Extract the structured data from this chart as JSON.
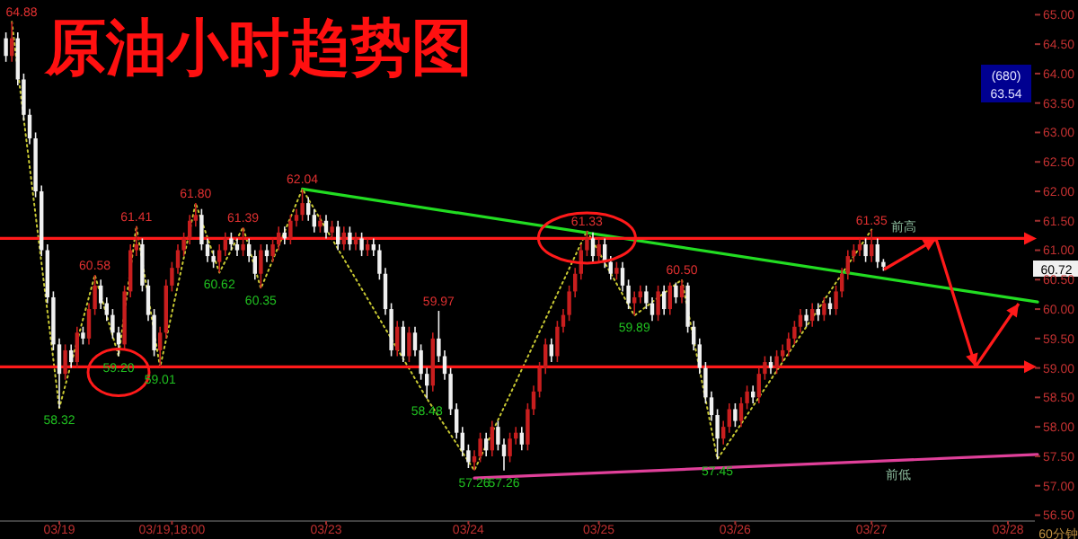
{
  "chart_data": {
    "type": "candlestick",
    "title": "原油小时趋势图",
    "categories": [
      null,
      null,
      null,
      null,
      null,
      null,
      null,
      null,
      null,
      null,
      "03/19",
      null,
      null,
      null,
      null,
      null,
      null,
      null,
      null,
      null,
      null,
      null,
      null,
      null,
      null,
      null,
      null,
      null,
      null,
      "03/19,18:00",
      null,
      null,
      null,
      null,
      null,
      null,
      null,
      null,
      null,
      null,
      null,
      null,
      null,
      null,
      null,
      null,
      null,
      null,
      null,
      null,
      null,
      null,
      null,
      null,
      null,
      "03/23",
      null,
      null,
      null,
      null,
      null,
      null,
      null,
      null,
      null,
      null,
      null,
      null,
      null,
      null,
      null,
      null,
      null,
      null,
      null,
      null,
      null,
      null,
      null,
      "03/24",
      null,
      null,
      null,
      null,
      null,
      null,
      null,
      null,
      null,
      null,
      null,
      null,
      null,
      null,
      null,
      null,
      null,
      null,
      null,
      null,
      null,
      "03/25",
      null,
      null,
      null,
      null,
      null,
      null,
      null,
      null,
      null,
      null,
      null,
      null,
      null,
      null,
      null,
      null,
      null,
      null,
      null,
      null,
      null,
      null,
      "03/26",
      null,
      null,
      null,
      null,
      null,
      null,
      null,
      null,
      null,
      null,
      null,
      null,
      null,
      null,
      null,
      null,
      null,
      null,
      null,
      null,
      null,
      null,
      "03/27",
      null,
      null,
      null,
      null,
      null,
      null,
      null,
      null,
      null,
      null,
      null,
      null,
      null,
      null,
      null,
      null,
      null,
      null,
      null,
      null,
      null,
      null,
      "03/28",
      null,
      null,
      null,
      null,
      null
    ],
    "ylim": [
      56.4,
      65.25
    ],
    "yticks": [
      {
        "value": 56.5,
        "label": "56.50"
      },
      {
        "value": 57,
        "label": "57.00"
      },
      {
        "value": 57.5,
        "label": "57.50"
      },
      {
        "value": 58,
        "label": "58.00"
      },
      {
        "value": 58.5,
        "label": "58.50"
      },
      {
        "value": 59,
        "label": "59.00"
      },
      {
        "value": 59.5,
        "label": "59.50"
      },
      {
        "value": 60,
        "label": "60.00"
      },
      {
        "value": 60.5,
        "label": "60.50"
      },
      {
        "value": 61,
        "label": "61.00"
      },
      {
        "value": 61.5,
        "label": "61.50"
      },
      {
        "value": 62,
        "label": "62.00"
      },
      {
        "value": 62.5,
        "label": "62.50"
      },
      {
        "value": 63,
        "label": "63.00"
      },
      {
        "value": 63.5,
        "label": "63.50"
      },
      {
        "value": 64,
        "label": "64.00"
      },
      {
        "value": 64.5,
        "label": "64.50"
      },
      {
        "value": 65,
        "label": "65.00"
      }
    ],
    "ohlc": [
      null,
      [
        64.6,
        64.7,
        64.2,
        64.3
      ],
      [
        64.3,
        64.88,
        64.2,
        64.6
      ],
      [
        64.6,
        64.7,
        63.8,
        63.9
      ],
      [
        63.9,
        64.0,
        63.2,
        63.3
      ],
      [
        63.3,
        63.4,
        62.8,
        62.9
      ],
      [
        62.9,
        63.0,
        61.9,
        62.0
      ],
      [
        62.0,
        62.1,
        60.9,
        61.0
      ],
      [
        61.0,
        61.1,
        60.1,
        60.2
      ],
      [
        60.2,
        60.3,
        59.3,
        59.4
      ],
      [
        59.4,
        59.5,
        58.32,
        58.9
      ],
      [
        58.9,
        59.4,
        58.8,
        59.3
      ],
      [
        59.3,
        59.4,
        59.0,
        59.1
      ],
      [
        59.1,
        59.7,
        59.0,
        59.6
      ],
      [
        59.6,
        59.7,
        59.4,
        59.5
      ],
      [
        59.5,
        60.1,
        59.4,
        60.0
      ],
      [
        60.0,
        60.58,
        59.9,
        60.4
      ],
      [
        60.4,
        60.5,
        60.0,
        60.1
      ],
      [
        60.1,
        60.2,
        59.8,
        59.9
      ],
      [
        59.9,
        60.0,
        59.5,
        59.6
      ],
      [
        59.6,
        59.7,
        59.2,
        59.4
      ],
      [
        59.4,
        60.4,
        59.3,
        60.3
      ],
      [
        60.3,
        61.1,
        60.2,
        61.0
      ],
      [
        61.0,
        61.41,
        60.9,
        61.1
      ],
      [
        61.1,
        61.2,
        60.3,
        60.4
      ],
      [
        60.4,
        60.5,
        59.8,
        59.9
      ],
      [
        59.9,
        60.0,
        59.2,
        59.3
      ],
      [
        59.3,
        59.7,
        59.01,
        59.6
      ],
      [
        59.6,
        60.5,
        59.5,
        60.4
      ],
      [
        60.4,
        60.8,
        60.3,
        60.7
      ],
      [
        60.7,
        61.1,
        60.6,
        61.0
      ],
      [
        61.0,
        61.3,
        60.9,
        61.2
      ],
      [
        61.2,
        61.6,
        61.1,
        61.5
      ],
      [
        61.5,
        61.8,
        61.4,
        61.6
      ],
      [
        61.6,
        61.7,
        61.0,
        61.1
      ],
      [
        61.1,
        61.2,
        60.8,
        60.9
      ],
      [
        60.9,
        61.0,
        60.7,
        60.8
      ],
      [
        60.8,
        61.1,
        60.62,
        61.0
      ],
      [
        61.0,
        61.3,
        60.9,
        61.2
      ],
      [
        61.2,
        61.3,
        61.0,
        61.1
      ],
      [
        61.1,
        61.2,
        60.9,
        61.0
      ],
      [
        61.0,
        61.39,
        60.9,
        61.1
      ],
      [
        61.1,
        61.2,
        60.8,
        60.9
      ],
      [
        60.9,
        61.0,
        60.5,
        60.6
      ],
      [
        60.6,
        61.1,
        60.35,
        61.0
      ],
      [
        61.0,
        61.1,
        60.8,
        60.9
      ],
      [
        60.9,
        61.2,
        60.8,
        61.1
      ],
      [
        61.1,
        61.4,
        61.0,
        61.3
      ],
      [
        61.3,
        61.4,
        61.1,
        61.2
      ],
      [
        61.2,
        61.6,
        61.1,
        61.5
      ],
      [
        61.5,
        61.7,
        61.4,
        61.6
      ],
      [
        61.6,
        62.04,
        61.5,
        61.8
      ],
      [
        61.8,
        61.9,
        61.5,
        61.6
      ],
      [
        61.6,
        61.7,
        61.3,
        61.4
      ],
      [
        61.4,
        61.6,
        61.3,
        61.5
      ],
      [
        61.5,
        61.6,
        61.2,
        61.3
      ],
      [
        61.3,
        61.5,
        61.2,
        61.4
      ],
      [
        61.4,
        61.5,
        61.0,
        61.1
      ],
      [
        61.1,
        61.4,
        61.0,
        61.3
      ],
      [
        61.3,
        61.4,
        61.0,
        61.1
      ],
      [
        61.1,
        61.3,
        61.0,
        61.2
      ],
      [
        61.2,
        61.3,
        60.9,
        61.0
      ],
      [
        61.0,
        61.2,
        60.9,
        61.1
      ],
      [
        61.1,
        61.2,
        60.9,
        61.0
      ],
      [
        61.0,
        61.1,
        60.5,
        60.6
      ],
      [
        60.6,
        60.7,
        59.9,
        60.0
      ],
      [
        60.0,
        60.1,
        59.2,
        59.3
      ],
      [
        59.3,
        59.8,
        59.2,
        59.7
      ],
      [
        59.7,
        59.8,
        59.1,
        59.2
      ],
      [
        59.2,
        59.7,
        59.1,
        59.6
      ],
      [
        59.6,
        59.7,
        59.2,
        59.3
      ],
      [
        59.3,
        59.4,
        58.8,
        58.9
      ],
      [
        58.9,
        59.0,
        58.48,
        58.7
      ],
      [
        58.7,
        59.6,
        58.6,
        59.5
      ],
      [
        59.5,
        59.97,
        59.1,
        59.2
      ],
      [
        59.2,
        59.3,
        58.8,
        58.9
      ],
      [
        58.9,
        59.0,
        58.2,
        58.3
      ],
      [
        58.3,
        58.4,
        57.8,
        57.9
      ],
      [
        57.9,
        58.0,
        57.5,
        57.6
      ],
      [
        57.6,
        57.7,
        57.3,
        57.4
      ],
      [
        57.4,
        57.6,
        57.26,
        57.5
      ],
      [
        57.5,
        57.9,
        57.4,
        57.8
      ],
      [
        57.8,
        57.9,
        57.5,
        57.6
      ],
      [
        57.6,
        58.1,
        57.5,
        58.0
      ],
      [
        58.0,
        58.1,
        57.6,
        57.7
      ],
      [
        57.7,
        57.8,
        57.26,
        57.5
      ],
      [
        57.5,
        57.9,
        57.4,
        57.8
      ],
      [
        57.8,
        58.0,
        57.7,
        57.9
      ],
      [
        57.9,
        58.0,
        57.6,
        57.7
      ],
      [
        57.7,
        58.4,
        57.6,
        58.3
      ],
      [
        58.3,
        58.7,
        58.2,
        58.6
      ],
      [
        58.6,
        59.1,
        58.5,
        59.0
      ],
      [
        59.0,
        59.5,
        58.9,
        59.4
      ],
      [
        59.4,
        59.5,
        59.1,
        59.2
      ],
      [
        59.2,
        59.8,
        59.1,
        59.7
      ],
      [
        59.7,
        60.0,
        59.6,
        59.9
      ],
      [
        59.9,
        60.4,
        59.8,
        60.3
      ],
      [
        60.3,
        60.7,
        60.2,
        60.6
      ],
      [
        60.6,
        61.1,
        60.5,
        61.0
      ],
      [
        61.0,
        61.33,
        60.9,
        61.2
      ],
      [
        61.2,
        61.3,
        60.8,
        60.9
      ],
      [
        60.9,
        61.2,
        60.8,
        61.1
      ],
      [
        61.1,
        61.2,
        60.7,
        60.8
      ],
      [
        60.8,
        60.9,
        60.5,
        60.6
      ],
      [
        60.6,
        60.8,
        60.5,
        60.7
      ],
      [
        60.7,
        60.8,
        60.3,
        60.4
      ],
      [
        60.4,
        60.5,
        60.0,
        60.1
      ],
      [
        60.1,
        60.3,
        59.89,
        60.2
      ],
      [
        60.2,
        60.4,
        60.1,
        60.3
      ],
      [
        60.3,
        60.4,
        60.0,
        60.1
      ],
      [
        60.1,
        60.2,
        59.8,
        59.9
      ],
      [
        59.9,
        60.4,
        59.8,
        60.3
      ],
      [
        60.3,
        60.4,
        59.9,
        60.0
      ],
      [
        60.0,
        60.45,
        59.9,
        60.4
      ],
      [
        60.4,
        60.45,
        60.1,
        60.2
      ],
      [
        60.2,
        60.5,
        60.1,
        60.4
      ],
      [
        60.4,
        60.45,
        59.6,
        59.7
      ],
      [
        59.7,
        59.8,
        59.3,
        59.4
      ],
      [
        59.4,
        59.5,
        58.9,
        59.0
      ],
      [
        59.0,
        59.1,
        58.4,
        58.5
      ],
      [
        58.5,
        58.6,
        58.1,
        58.2
      ],
      [
        58.2,
        58.3,
        57.45,
        57.8
      ],
      [
        57.8,
        58.1,
        57.7,
        58.0
      ],
      [
        58.0,
        58.4,
        57.9,
        58.3
      ],
      [
        58.3,
        58.4,
        58.0,
        58.1
      ],
      [
        58.1,
        58.5,
        58.0,
        58.4
      ],
      [
        58.4,
        58.7,
        58.3,
        58.6
      ],
      [
        58.6,
        58.7,
        58.4,
        58.5
      ],
      [
        58.5,
        59.0,
        58.4,
        58.9
      ],
      [
        58.9,
        59.2,
        58.8,
        59.1
      ],
      [
        59.1,
        59.2,
        58.9,
        59.0
      ],
      [
        59.0,
        59.3,
        58.9,
        59.2
      ],
      [
        59.2,
        59.4,
        59.1,
        59.3
      ],
      [
        59.3,
        59.6,
        59.2,
        59.5
      ],
      [
        59.5,
        59.8,
        59.4,
        59.7
      ],
      [
        59.7,
        60.0,
        59.6,
        59.9
      ],
      [
        59.9,
        60.0,
        59.7,
        59.8
      ],
      [
        59.8,
        60.1,
        59.7,
        60.0
      ],
      [
        60.0,
        60.1,
        59.8,
        59.9
      ],
      [
        59.9,
        60.2,
        59.8,
        60.1
      ],
      [
        60.1,
        60.2,
        59.9,
        60.0
      ],
      [
        60.0,
        60.4,
        59.9,
        60.3
      ],
      [
        60.3,
        60.7,
        60.2,
        60.6
      ],
      [
        60.6,
        61.0,
        60.5,
        60.9
      ],
      [
        60.9,
        61.1,
        60.8,
        61.0
      ],
      [
        61.0,
        61.2,
        60.9,
        61.1
      ],
      [
        61.1,
        61.2,
        60.8,
        60.9
      ],
      [
        60.9,
        61.35,
        60.8,
        61.1
      ],
      [
        61.1,
        61.2,
        60.7,
        60.8
      ],
      [
        60.8,
        60.85,
        60.65,
        60.72
      ],
      null,
      null,
      null,
      null,
      null,
      null,
      null,
      null,
      null,
      null,
      null,
      null,
      null,
      null,
      null,
      null,
      null,
      null,
      null,
      null,
      null,
      null,
      null,
      null,
      null,
      null
    ],
    "colors": [
      null,
      "#f0f0f0",
      "#c81e1e",
      "#f0f0f0",
      "#f0f0f0",
      "#f0f0f0",
      "#f0f0f0",
      "#f0f0f0",
      "#f0f0f0",
      "#f0f0f0",
      "#f0f0f0",
      "#c81e1e",
      "#f0f0f0",
      "#c81e1e",
      "#f0f0f0",
      "#c81e1e",
      "#c81e1e",
      "#f0f0f0",
      "#f0f0f0",
      "#f0f0f0",
      "#f0f0f0",
      "#c81e1e",
      "#c81e1e",
      "#c81e1e",
      "#f0f0f0",
      "#f0f0f0",
      "#f0f0f0",
      "#c81e1e",
      "#c81e1e",
      "#c81e1e",
      "#c81e1e",
      "#c81e1e",
      "#c81e1e",
      "#c81e1e",
      "#f0f0f0",
      "#f0f0f0",
      "#f0f0f0",
      "#c81e1e",
      "#c81e1e",
      "#f0f0f0",
      "#f0f0f0",
      "#c81e1e",
      "#f0f0f0",
      "#f0f0f0",
      "#c81e1e",
      "#f0f0f0",
      "#c81e1e",
      "#c81e1e",
      "#f0f0f0",
      "#c81e1e",
      "#c81e1e",
      "#c81e1e",
      "#f0f0f0",
      "#f0f0f0",
      "#c81e1e",
      "#f0f0f0",
      "#c81e1e",
      "#f0f0f0",
      "#c81e1e",
      "#f0f0f0",
      "#c81e1e",
      "#f0f0f0",
      "#c81e1e",
      "#f0f0f0",
      "#f0f0f0",
      "#f0f0f0",
      "#f0f0f0",
      "#c81e1e",
      "#f0f0f0",
      "#c81e1e",
      "#f0f0f0",
      "#f0f0f0",
      "#f0f0f0",
      "#c81e1e",
      "#f0f0f0",
      "#f0f0f0",
      "#f0f0f0",
      "#f0f0f0",
      "#f0f0f0",
      "#f0f0f0",
      "#c81e1e",
      "#c81e1e",
      "#f0f0f0",
      "#c81e1e",
      "#f0f0f0",
      "#f0f0f0",
      "#c81e1e",
      "#c81e1e",
      "#f0f0f0",
      "#c81e1e",
      "#c81e1e",
      "#c81e1e",
      "#c81e1e",
      "#f0f0f0",
      "#c81e1e",
      "#c81e1e",
      "#c81e1e",
      "#c81e1e",
      "#c81e1e",
      "#c81e1e",
      "#f0f0f0",
      "#c81e1e",
      "#f0f0f0",
      "#f0f0f0",
      "#c81e1e",
      "#f0f0f0",
      "#f0f0f0",
      "#c81e1e",
      "#c81e1e",
      "#f0f0f0",
      "#f0f0f0",
      "#c81e1e",
      "#f0f0f0",
      "#c81e1e",
      "#f0f0f0",
      "#c81e1e",
      "#f0f0f0",
      "#f0f0f0",
      "#f0f0f0",
      "#f0f0f0",
      "#f0f0f0",
      "#f0f0f0",
      "#c81e1e",
      "#c81e1e",
      "#f0f0f0",
      "#c81e1e",
      "#c81e1e",
      "#f0f0f0",
      "#c81e1e",
      "#c81e1e",
      "#f0f0f0",
      "#c81e1e",
      "#c81e1e",
      "#c81e1e",
      "#c81e1e",
      "#c81e1e",
      "#f0f0f0",
      "#c81e1e",
      "#f0f0f0",
      "#c81e1e",
      "#f0f0f0",
      "#c81e1e",
      "#c81e1e",
      "#c81e1e",
      "#c81e1e",
      "#c81e1e",
      "#f0f0f0",
      "#c81e1e",
      "#f0f0f0",
      "#f0f0f0",
      null,
      null,
      null,
      null,
      null,
      null,
      null,
      null,
      null,
      null,
      null,
      null,
      null,
      null,
      null,
      null,
      null,
      null,
      null,
      null,
      null,
      null,
      null,
      null,
      null,
      null
    ],
    "value_labels": [
      null,
      null,
      "64.88",
      null,
      null,
      null,
      null,
      null,
      null,
      null,
      "58.32",
      null,
      null,
      null,
      null,
      null,
      "60.58",
      null,
      null,
      null,
      "59.20",
      null,
      null,
      "61.41",
      null,
      null,
      null,
      "59.01",
      null,
      null,
      null,
      null,
      null,
      "61.80",
      null,
      null,
      null,
      "60.62",
      null,
      null,
      null,
      "61.39",
      null,
      null,
      "60.35",
      null,
      null,
      null,
      null,
      null,
      null,
      "62.04",
      null,
      null,
      null,
      null,
      null,
      null,
      null,
      null,
      null,
      null,
      null,
      null,
      null,
      null,
      null,
      null,
      null,
      null,
      null,
      null,
      "58.48",
      null,
      "59.97",
      null,
      null,
      null,
      null,
      null,
      "57.26",
      null,
      null,
      null,
      null,
      "57.26",
      null,
      null,
      null,
      null,
      null,
      null,
      null,
      null,
      null,
      null,
      null,
      null,
      null,
      "61.33",
      null,
      null,
      null,
      null,
      null,
      null,
      null,
      "59.89",
      null,
      null,
      null,
      null,
      null,
      null,
      null,
      "60.50",
      null,
      null,
      null,
      null,
      null,
      "57.45",
      null,
      null,
      null,
      null,
      null,
      null,
      null,
      null,
      null,
      null,
      null,
      null,
      null,
      null,
      null,
      null,
      null,
      null,
      null,
      null,
      null,
      null,
      null,
      null,
      null,
      "61.35",
      null,
      null,
      null,
      null,
      null,
      null,
      null,
      null,
      null,
      null,
      null,
      null,
      null,
      null,
      null,
      null,
      null,
      null,
      null,
      null,
      null,
      null,
      null,
      null,
      null,
      null,
      null,
      null
    ],
    "series": [
      {
        "type": "line",
        "color": "#c8c832",
        "line_style": "dotted",
        "values": [
          null,
          null,
          64.88,
          null,
          null,
          null,
          null,
          null,
          null,
          null,
          58.32,
          null,
          null,
          null,
          null,
          null,
          60.58,
          null,
          null,
          null,
          59.2,
          null,
          null,
          61.41,
          null,
          null,
          null,
          59.01,
          null,
          null,
          null,
          null,
          null,
          61.8,
          null,
          null,
          null,
          60.62,
          null,
          null,
          null,
          61.39,
          null,
          null,
          60.35,
          null,
          null,
          null,
          null,
          null,
          null,
          62.04,
          null,
          null,
          null,
          null,
          null,
          null,
          null,
          null,
          null,
          null,
          null,
          null,
          null,
          null,
          null,
          null,
          null,
          null,
          null,
          null,
          58.48,
          null,
          null,
          null,
          null,
          null,
          null,
          null,
          57.26,
          null,
          null,
          null,
          null,
          null,
          null,
          null,
          null,
          null,
          null,
          null,
          null,
          null,
          null,
          null,
          null,
          null,
          null,
          61.33,
          null,
          null,
          null,
          null,
          null,
          null,
          null,
          59.89,
          null,
          null,
          null,
          null,
          null,
          null,
          null,
          60.5,
          null,
          null,
          null,
          null,
          null,
          57.45,
          null,
          null,
          null,
          null,
          null,
          null,
          null,
          null,
          null,
          null,
          null,
          null,
          null,
          null,
          null,
          null,
          null,
          null,
          null,
          null,
          null,
          null,
          null,
          null,
          null,
          61.35,
          null,
          null,
          null,
          null,
          null,
          null,
          null,
          null,
          null,
          null,
          null,
          null,
          null,
          null,
          null,
          null,
          null,
          null,
          null,
          null,
          null,
          null,
          null,
          null,
          null,
          null,
          null,
          null
        ]
      },
      {
        "type": "line",
        "color": "#22dd22",
        "values": [
          null,
          null,
          null,
          null,
          null,
          null,
          null,
          null,
          null,
          null,
          null,
          null,
          null,
          null,
          null,
          null,
          null,
          null,
          null,
          null,
          null,
          null,
          null,
          null,
          null,
          null,
          null,
          null,
          null,
          null,
          null,
          null,
          null,
          null,
          null,
          null,
          null,
          null,
          null,
          null,
          null,
          null,
          null,
          null,
          null,
          null,
          null,
          null,
          null,
          null,
          null,
          62.04,
          null,
          null,
          null,
          null,
          null,
          null,
          null,
          null,
          null,
          null,
          null,
          null,
          null,
          null,
          null,
          null,
          null,
          null,
          null,
          null,
          null,
          null,
          null,
          null,
          null,
          null,
          null,
          null,
          null,
          null,
          null,
          null,
          null,
          null,
          null,
          null,
          null,
          null,
          null,
          null,
          null,
          null,
          null,
          null,
          null,
          null,
          null,
          null,
          null,
          null,
          null,
          null,
          null,
          null,
          null,
          null,
          null,
          null,
          null,
          null,
          null,
          null,
          null,
          null,
          null,
          null,
          null,
          null,
          null,
          null,
          null,
          null,
          null,
          null,
          null,
          null,
          null,
          null,
          null,
          null,
          null,
          null,
          null,
          null,
          null,
          null,
          null,
          null,
          null,
          null,
          null,
          null,
          null,
          null,
          null,
          null,
          null,
          null,
          null,
          null,
          null,
          null,
          null,
          null,
          null,
          null,
          null,
          null,
          null,
          null,
          null,
          null,
          null,
          null,
          null,
          null,
          null,
          null,
          null,
          null,
          null,
          null,
          null,
          60.12
        ]
      },
      {
        "type": "line",
        "color": "#e0409a",
        "values": [
          null,
          null,
          null,
          null,
          null,
          null,
          null,
          null,
          null,
          null,
          null,
          null,
          null,
          null,
          null,
          null,
          null,
          null,
          null,
          null,
          null,
          null,
          null,
          null,
          null,
          null,
          null,
          null,
          null,
          null,
          null,
          null,
          null,
          null,
          null,
          null,
          null,
          null,
          null,
          null,
          null,
          null,
          null,
          null,
          null,
          null,
          null,
          null,
          null,
          null,
          null,
          null,
          null,
          null,
          null,
          null,
          null,
          null,
          null,
          null,
          null,
          null,
          null,
          null,
          null,
          null,
          null,
          null,
          null,
          null,
          null,
          null,
          null,
          null,
          null,
          null,
          null,
          null,
          null,
          null,
          57.13,
          null,
          null,
          null,
          null,
          null,
          null,
          null,
          null,
          null,
          null,
          null,
          null,
          null,
          null,
          null,
          null,
          null,
          null,
          null,
          null,
          null,
          null,
          null,
          null,
          null,
          null,
          null,
          null,
          null,
          null,
          null,
          null,
          null,
          null,
          null,
          null,
          null,
          null,
          null,
          null,
          null,
          null,
          null,
          null,
          null,
          null,
          null,
          null,
          null,
          null,
          null,
          null,
          null,
          null,
          null,
          null,
          null,
          null,
          null,
          null,
          null,
          null,
          null,
          null,
          null,
          null,
          null,
          null,
          null,
          null,
          null,
          null,
          null,
          null,
          null,
          null,
          null,
          null,
          null,
          null,
          null,
          null,
          null,
          null,
          null,
          null,
          null,
          null,
          null,
          null,
          null,
          null,
          null,
          null,
          57.53
        ]
      }
    ],
    "ref_lines": [
      {
        "axis": "y",
        "value": 61.2,
        "label": "前高",
        "color": "#ff1a1a"
      },
      {
        "axis": "y",
        "value": 59.02,
        "color": "#ff1a1a"
      }
    ],
    "annotations": [
      {
        "text": "前低",
        "y": 57.4
      },
      "(680)",
      "63.54",
      "60.72",
      "60分钟"
    ]
  }
}
